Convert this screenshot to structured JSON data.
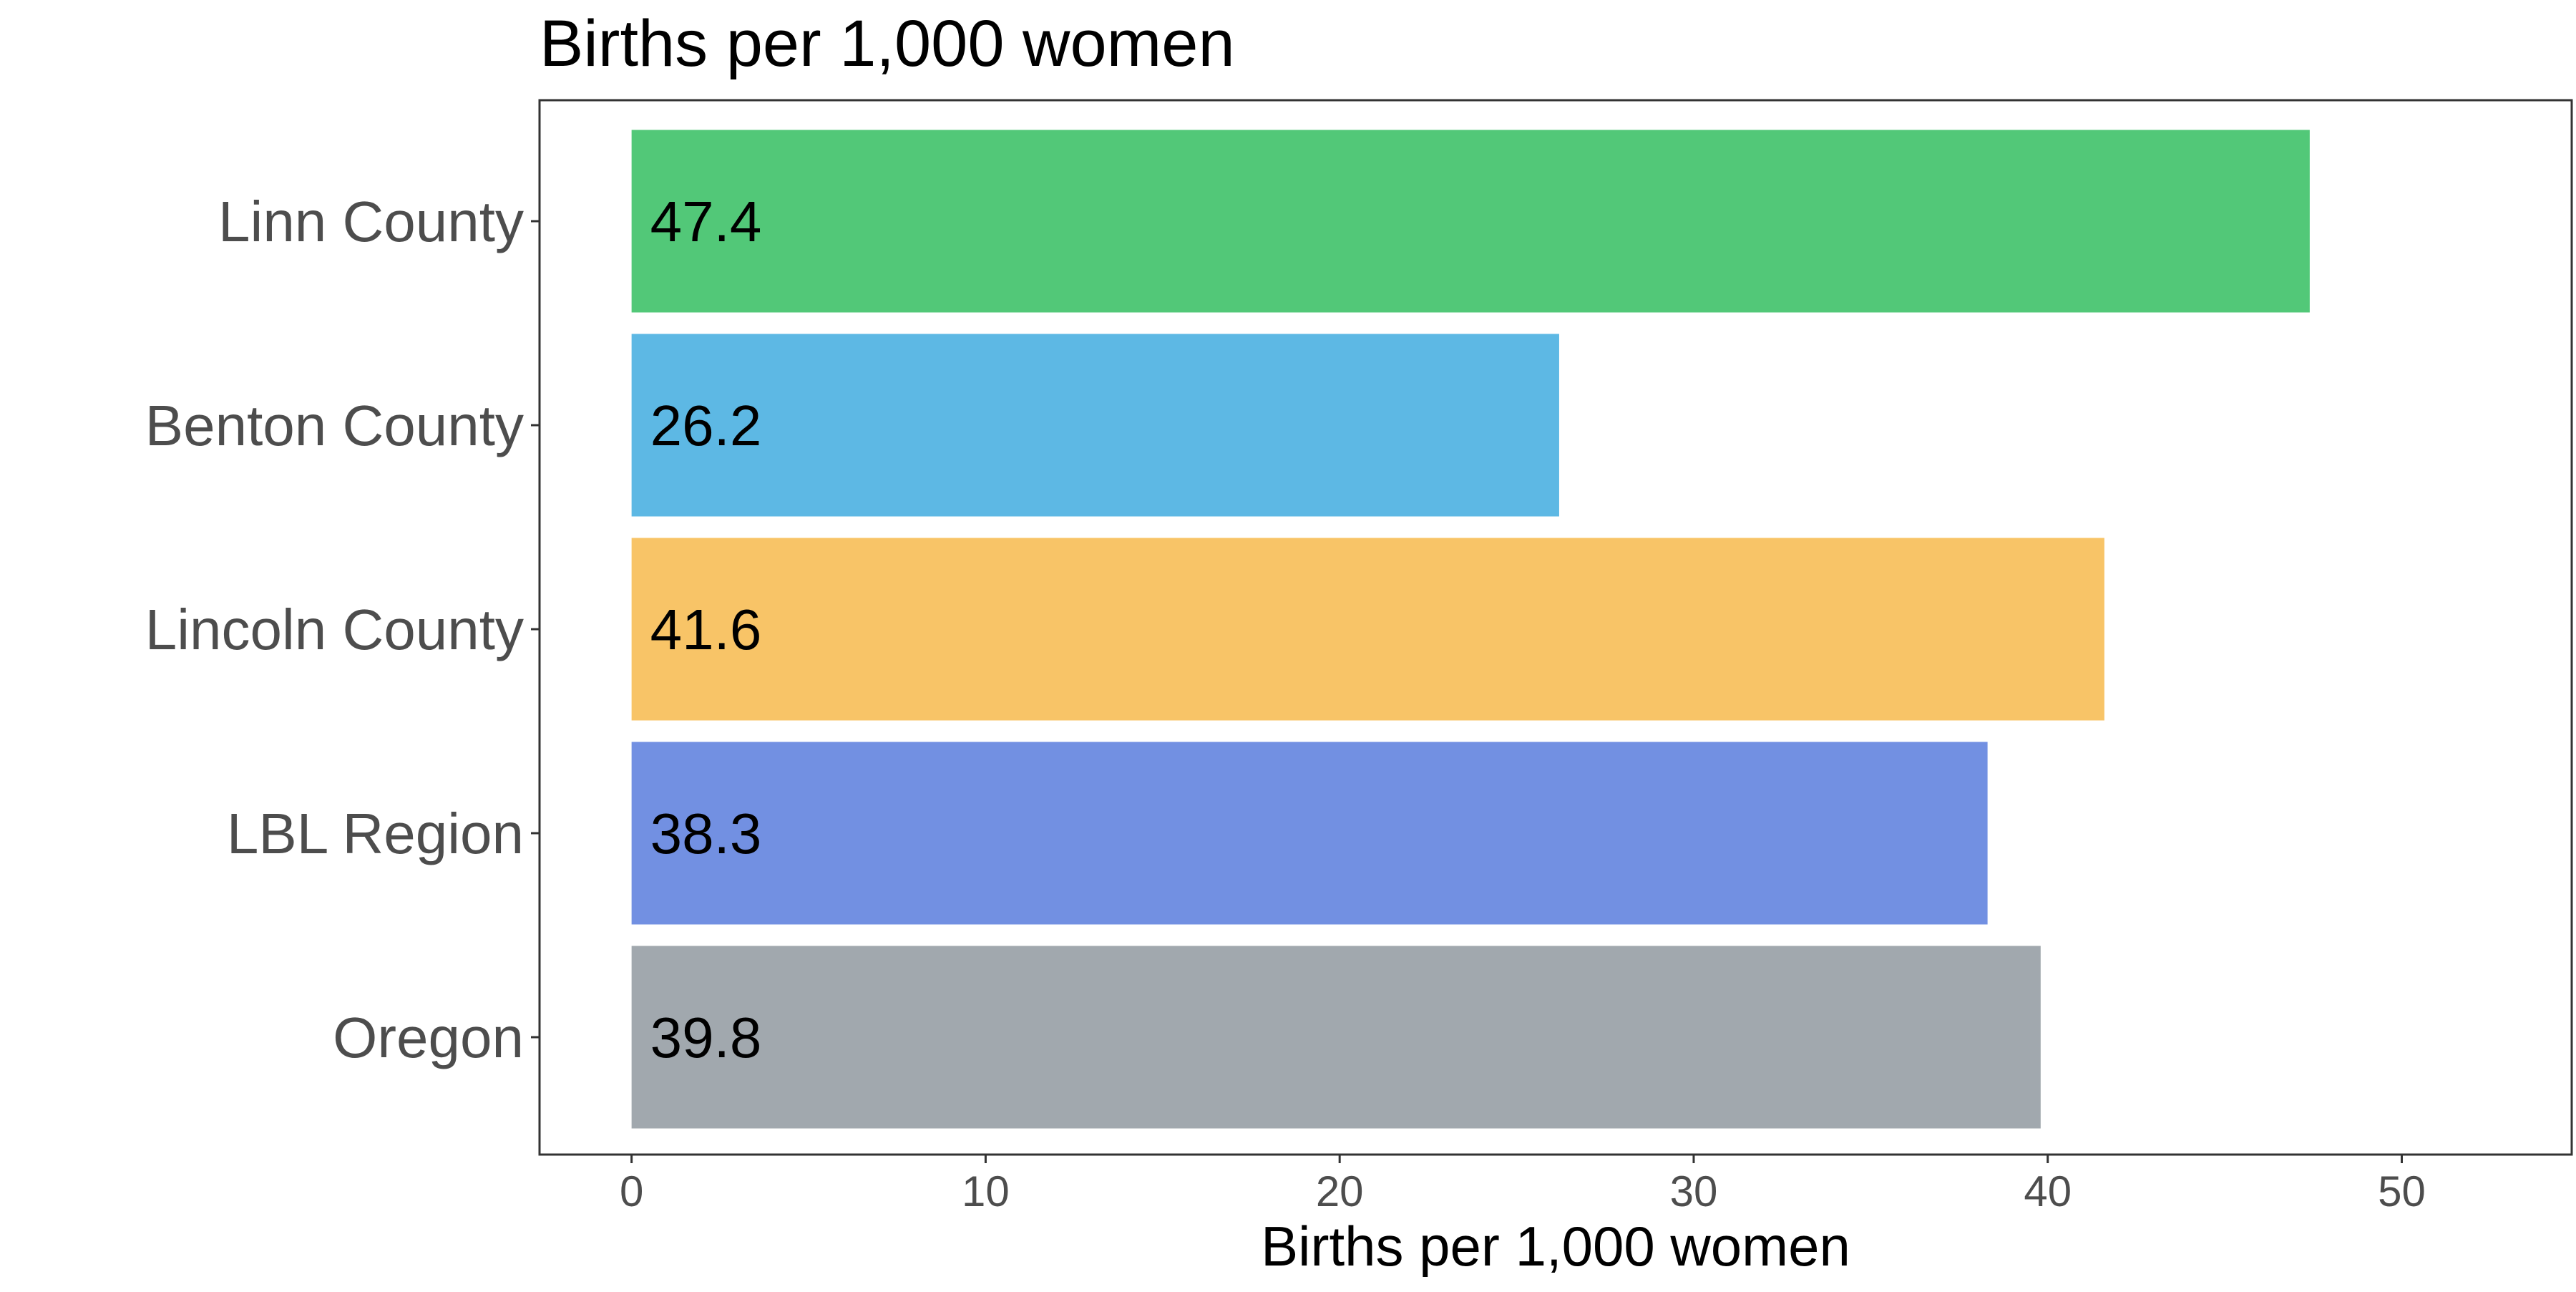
{
  "chart_data": {
    "type": "bar",
    "orientation": "horizontal",
    "title": "Births per 1,000 women",
    "xlabel": "Births per 1,000 women",
    "ylabel": "",
    "categories": [
      "Linn County",
      "Benton County",
      "Lincoln County",
      "LBL Region",
      "Oregon"
    ],
    "values": [
      47.4,
      26.2,
      41.6,
      38.3,
      39.8
    ],
    "value_labels": [
      "47.4",
      "26.2",
      "41.6",
      "38.3",
      "39.8"
    ],
    "colors": [
      "#52C878",
      "#5DB8E4",
      "#F8C467",
      "#7290E2",
      "#A1A8AE"
    ],
    "xlim": [
      -2.6,
      54.8
    ],
    "xticks": [
      0,
      10,
      20,
      30,
      40,
      50
    ],
    "xtick_labels": [
      "0",
      "10",
      "20",
      "30",
      "40",
      "50"
    ],
    "grid": false,
    "legend": "none"
  }
}
